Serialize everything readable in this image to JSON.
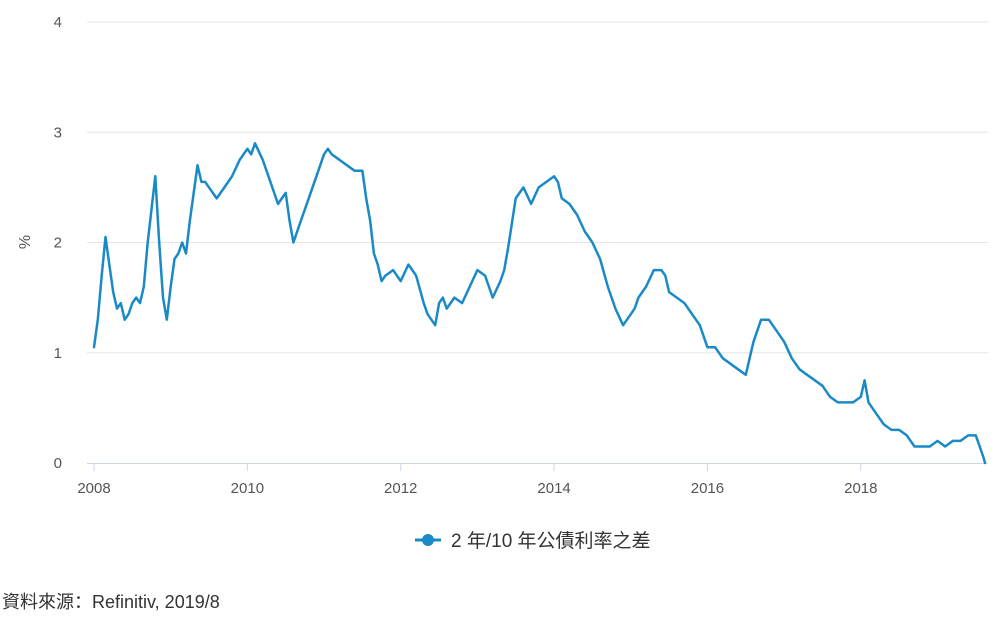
{
  "source_note": "資料來源：Refinitiv, 2019/8",
  "colors": {
    "series": "#1a8ac6",
    "grid": "#e6e6e6",
    "axis": "#ccd6eb",
    "text": "#555555"
  },
  "chart_data": {
    "type": "line",
    "title": "",
    "xlabel": "",
    "ylabel": "%",
    "xlim": [
      2008.0,
      2019.75
    ],
    "ylim": [
      0,
      4
    ],
    "grid": true,
    "legend_position": "bottom-center",
    "x_ticks": [
      "2008",
      "2010",
      "2012",
      "2014",
      "2016",
      "2018"
    ],
    "y_ticks": [
      "0",
      "1",
      "2",
      "3",
      "4"
    ],
    "series": [
      {
        "name": "2 年/10 年公債利率之差",
        "color": "#1a8ac6",
        "x": [
          2008.0,
          2008.05,
          2008.1,
          2008.15,
          2008.2,
          2008.25,
          2008.3,
          2008.35,
          2008.4,
          2008.45,
          2008.5,
          2008.55,
          2008.6,
          2008.65,
          2008.7,
          2008.75,
          2008.8,
          2008.85,
          2008.9,
          2008.95,
          2009.0,
          2009.05,
          2009.1,
          2009.15,
          2009.2,
          2009.25,
          2009.3,
          2009.35,
          2009.4,
          2009.45,
          2009.5,
          2009.6,
          2009.7,
          2009.8,
          2009.9,
          2010.0,
          2010.05,
          2010.1,
          2010.2,
          2010.3,
          2010.4,
          2010.5,
          2010.55,
          2010.6,
          2010.7,
          2010.8,
          2010.9,
          2011.0,
          2011.05,
          2011.1,
          2011.2,
          2011.3,
          2011.4,
          2011.5,
          2011.55,
          2011.6,
          2011.65,
          2011.7,
          2011.75,
          2011.8,
          2011.9,
          2012.0,
          2012.1,
          2012.2,
          2012.3,
          2012.35,
          2012.4,
          2012.45,
          2012.5,
          2012.55,
          2012.6,
          2012.7,
          2012.8,
          2012.9,
          2013.0,
          2013.1,
          2013.2,
          2013.3,
          2013.35,
          2013.4,
          2013.5,
          2013.6,
          2013.7,
          2013.8,
          2013.9,
          2014.0,
          2014.05,
          2014.1,
          2014.2,
          2014.3,
          2014.4,
          2014.5,
          2014.6,
          2014.7,
          2014.8,
          2014.9,
          2015.0,
          2015.05,
          2015.1,
          2015.2,
          2015.3,
          2015.4,
          2015.45,
          2015.5,
          2015.6,
          2015.7,
          2015.8,
          2015.9,
          2016.0,
          2016.1,
          2016.2,
          2016.3,
          2016.4,
          2016.5,
          2016.55,
          2016.6,
          2016.7,
          2016.8,
          2016.9,
          2017.0,
          2017.1,
          2017.2,
          2017.3,
          2017.4,
          2017.5,
          2017.6,
          2017.7,
          2017.8,
          2017.9,
          2018.0,
          2018.05,
          2018.1,
          2018.15,
          2018.2,
          2018.3,
          2018.4,
          2018.5,
          2018.6,
          2018.7,
          2018.8,
          2018.9,
          2019.0,
          2019.1,
          2019.2,
          2019.3,
          2019.4,
          2019.5,
          2019.55,
          2019.6,
          2019.62
        ],
        "values": [
          1.05,
          1.3,
          1.7,
          2.05,
          1.8,
          1.55,
          1.4,
          1.45,
          1.3,
          1.35,
          1.45,
          1.5,
          1.45,
          1.6,
          2.0,
          2.3,
          2.6,
          2.0,
          1.5,
          1.3,
          1.6,
          1.85,
          1.9,
          2.0,
          1.9,
          2.2,
          2.45,
          2.7,
          2.55,
          2.55,
          2.5,
          2.4,
          2.5,
          2.6,
          2.75,
          2.85,
          2.8,
          2.9,
          2.75,
          2.55,
          2.35,
          2.45,
          2.2,
          2.0,
          2.2,
          2.4,
          2.6,
          2.8,
          2.85,
          2.8,
          2.75,
          2.7,
          2.65,
          2.65,
          2.4,
          2.2,
          1.9,
          1.8,
          1.65,
          1.7,
          1.75,
          1.65,
          1.8,
          1.7,
          1.45,
          1.35,
          1.3,
          1.25,
          1.45,
          1.5,
          1.4,
          1.5,
          1.45,
          1.6,
          1.75,
          1.7,
          1.5,
          1.65,
          1.75,
          1.95,
          2.4,
          2.5,
          2.35,
          2.5,
          2.55,
          2.6,
          2.55,
          2.4,
          2.35,
          2.25,
          2.1,
          2.0,
          1.85,
          1.6,
          1.4,
          1.25,
          1.35,
          1.4,
          1.5,
          1.6,
          1.75,
          1.75,
          1.7,
          1.55,
          1.5,
          1.45,
          1.35,
          1.25,
          1.05,
          1.05,
          0.95,
          0.9,
          0.85,
          0.8,
          0.95,
          1.1,
          1.3,
          1.3,
          1.2,
          1.1,
          0.95,
          0.85,
          0.8,
          0.75,
          0.7,
          0.6,
          0.55,
          0.55,
          0.55,
          0.6,
          0.75,
          0.55,
          0.5,
          0.45,
          0.35,
          0.3,
          0.3,
          0.25,
          0.15,
          0.15,
          0.15,
          0.2,
          0.15,
          0.2,
          0.2,
          0.25,
          0.25,
          0.15,
          0.05,
          0.0
        ]
      }
    ]
  }
}
